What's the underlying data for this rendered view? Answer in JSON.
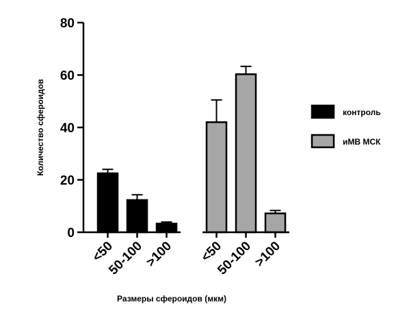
{
  "chart_data": {
    "type": "bar",
    "xlabel": "Размеры сфероидов (мкм)",
    "ylabel": "Количество сфероидов",
    "ylim": [
      0,
      80
    ],
    "yticks": [
      0,
      20,
      40,
      60,
      80
    ],
    "grid": false,
    "legend_position": "right",
    "categories": [
      "<50",
      "50-100",
      ">100"
    ],
    "series": [
      {
        "name": "контроль",
        "color": "#000000",
        "values": [
          22.5,
          12.3,
          3.3
        ],
        "errors": [
          1.5,
          2.0,
          0.6
        ]
      },
      {
        "name": "иМВ МСК",
        "color": "#a6a6a6",
        "values": [
          42,
          60.3,
          7.2
        ],
        "errors": [
          8.5,
          3.0,
          1.1
        ]
      }
    ]
  }
}
